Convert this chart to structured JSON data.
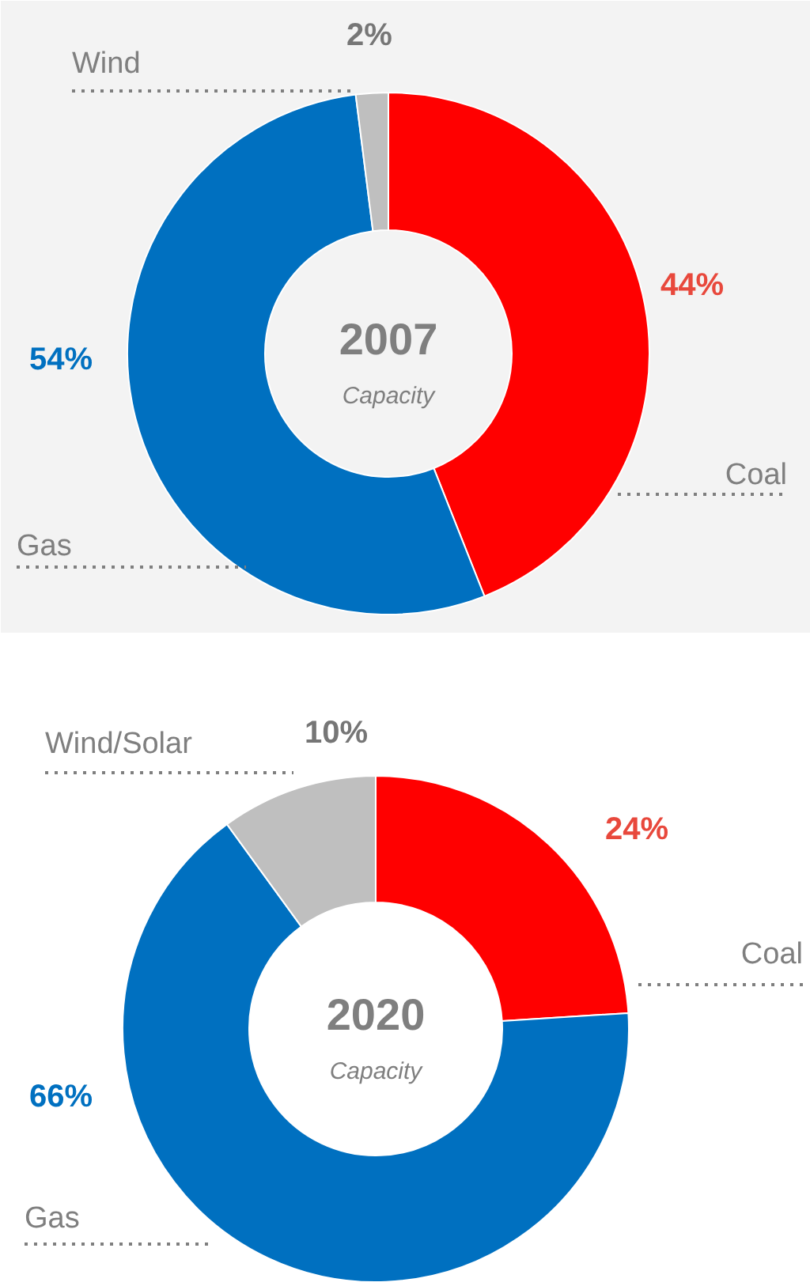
{
  "chart_data": [
    {
      "type": "donut",
      "title": "2007",
      "subtitle": "Capacity",
      "categories": [
        "Coal",
        "Gas",
        "Wind"
      ],
      "values": [
        44,
        54,
        2
      ],
      "value_labels": [
        "44%",
        "54%",
        "2%"
      ],
      "colors": [
        "#ff0000",
        "#0070c0",
        "#bfbfbf"
      ]
    },
    {
      "type": "donut",
      "title": "2020",
      "subtitle": "Capacity",
      "categories": [
        "Coal",
        "Gas",
        "Wind/Solar"
      ],
      "values": [
        24,
        66,
        10
      ],
      "value_labels": [
        "24%",
        "66%",
        "10%"
      ],
      "colors": [
        "#ff0000",
        "#0070c0",
        "#bfbfbf"
      ]
    }
  ]
}
